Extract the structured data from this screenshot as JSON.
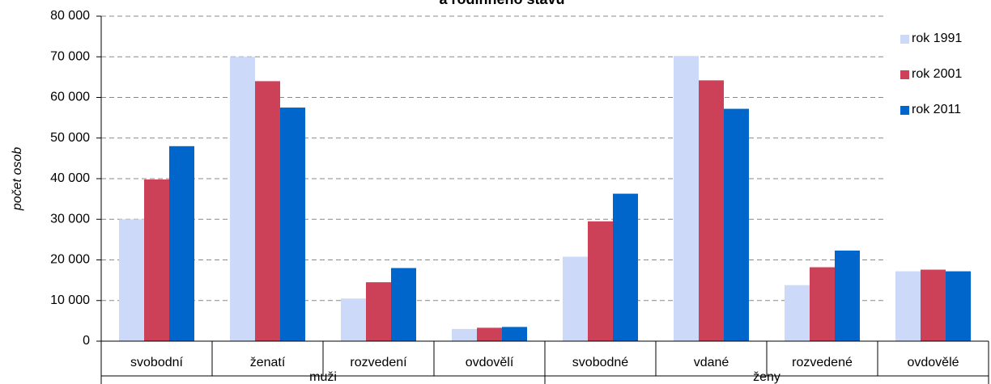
{
  "chart_data": {
    "type": "bar",
    "title": "a rodinného stavu",
    "y_label": "počet osob",
    "categories": [
      "svobodní",
      "ženatí",
      "rozvedení",
      "ovdovělí",
      "svobodné",
      "vdané",
      "rozvedené",
      "ovdovělé"
    ],
    "groups": [
      "muži",
      "ženy"
    ],
    "series": [
      {
        "name": "rok 1991",
        "color": "#cdd9f8",
        "values": [
          30000,
          70000,
          10500,
          3000,
          20800,
          70200,
          13800,
          17200
        ]
      },
      {
        "name": "rok 2001",
        "color": "#cc4058",
        "values": [
          39800,
          64000,
          14500,
          3300,
          29500,
          64200,
          18200,
          17600
        ]
      },
      {
        "name": "rok 2011",
        "color": "#0066cc",
        "values": [
          48000,
          57500,
          18000,
          3500,
          36300,
          57200,
          22300,
          17200
        ]
      }
    ],
    "ylim": [
      0,
      80000
    ],
    "yticks": [
      {
        "value": 0,
        "label": "0"
      },
      {
        "value": 10000,
        "label": "10 000"
      },
      {
        "value": 20000,
        "label": "20 000"
      },
      {
        "value": 30000,
        "label": "30 000"
      },
      {
        "value": 40000,
        "label": "40 000"
      },
      {
        "value": 50000,
        "label": "50 000"
      },
      {
        "value": 60000,
        "label": "60 000"
      },
      {
        "value": 70000,
        "label": "70 000"
      },
      {
        "value": 80000,
        "label": "80 000"
      }
    ],
    "grid": true,
    "legend": "top-right"
  }
}
